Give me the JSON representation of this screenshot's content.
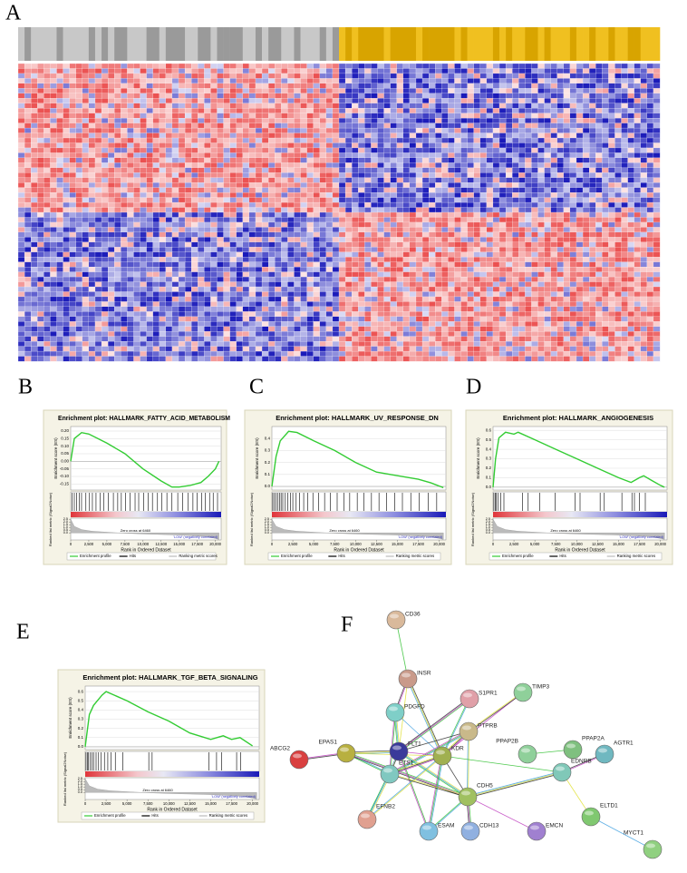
{
  "panel_labels": [
    "A",
    "B",
    "C",
    "D",
    "E",
    "F"
  ],
  "chart_data": [
    {
      "type": "line",
      "title": "Enrichment plot: HALLMARK_FATTY_ACID_METABOLISM",
      "ylabel": "Enrichment score (ES)",
      "metric_label": "Ranked list metric (Signal2Noise)",
      "xlabel": "Rank in Ordered Dataset",
      "high_label": "'HIGH' (positively correlated)",
      "low_label": "'LOW' (negatively correlated)",
      "zero_cross": "Zero cross at 6460",
      "legend": [
        "Enrichment profile",
        "Hits",
        "Ranking metric scores"
      ],
      "color": "#33cc33",
      "x": [
        0,
        500,
        1500,
        2500,
        5000,
        7500,
        10000,
        12500,
        14000,
        15000,
        16500,
        18000,
        19000,
        20000,
        20500
      ],
      "values": [
        0,
        0.15,
        0.19,
        0.18,
        0.12,
        0.05,
        -0.05,
        -0.13,
        -0.17,
        -0.17,
        -0.16,
        -0.14,
        -0.1,
        -0.05,
        0
      ],
      "xlim": [
        0,
        20800
      ],
      "xticks": [
        0,
        {
          "value": 2500,
          "label": "2,500"
        },
        {
          "value": 5000,
          "label": "5,000"
        },
        {
          "value": 7500,
          "label": "7,500"
        },
        {
          "value": 10000,
          "label": "10,000"
        },
        {
          "value": 12500,
          "label": "12,500"
        },
        {
          "value": 15000,
          "label": "15,000"
        },
        {
          "value": 17500,
          "label": "17,500"
        },
        {
          "value": 20000,
          "label": "20,000"
        }
      ],
      "ylim": [
        -0.19,
        0.23
      ],
      "yticks": [
        {
          "value": 0.2,
          "label": "0.20"
        },
        0.15,
        {
          "value": 0.1,
          "label": "0.10"
        },
        0.05,
        {
          "value": 0,
          "label": "0.00"
        },
        -0.05,
        {
          "value": -0.1,
          "label": "-0.10"
        },
        -0.15
      ],
      "hits": [
        200,
        500,
        800,
        1200,
        1500,
        2100,
        2600,
        3000,
        3500,
        4100,
        4600,
        5200,
        5900,
        6500,
        7000,
        7600,
        8200,
        8900,
        9400,
        10100,
        10700,
        11300,
        12000,
        12600,
        13300,
        14000,
        14800,
        15500,
        16200,
        16900,
        17500,
        18100,
        18600,
        19200,
        19700,
        20300
      ],
      "metric": {
        "x": [
          0,
          500,
          1500,
          3000,
          6460,
          10000,
          15000,
          19000,
          20500
        ],
        "values": [
          2.5,
          1.2,
          0.6,
          0.3,
          0,
          -0.2,
          -0.4,
          -0.7,
          -1.2
        ],
        "ylim": [
          -1.3,
          2.7
        ],
        "yticks": [
          2.5,
          {
            "value": 2,
            "label": "2.0"
          },
          1.5,
          {
            "value": 1,
            "label": "1.0"
          },
          0.5,
          {
            "value": 0,
            "label": "0.0"
          }
        ]
      }
    },
    {
      "type": "line",
      "title": "Enrichment plot: HALLMARK_UV_RESPONSE_DN",
      "ylabel": "Enrichment score (ES)",
      "metric_label": "Ranked list metric (Signal2Noise)",
      "xlabel": "Rank in Ordered Dataset",
      "high_label": "'HIGH' (positively correlated)",
      "low_label": "'LOW' (negatively correlated)",
      "zero_cross": "Zero cross at 6460",
      "legend": [
        "Enrichment profile",
        "Hits",
        "Ranking metric scores"
      ],
      "color": "#33cc33",
      "x": [
        0,
        500,
        1000,
        2000,
        3000,
        5000,
        7500,
        10000,
        12500,
        15000,
        17500,
        19000,
        20500
      ],
      "values": [
        0,
        0.25,
        0.38,
        0.46,
        0.45,
        0.38,
        0.3,
        0.2,
        0.12,
        0.09,
        0.06,
        0.03,
        -0.01
      ],
      "xlim": [
        0,
        20800
      ],
      "xticks": [
        0,
        {
          "value": 2500,
          "label": "2,500"
        },
        {
          "value": 5000,
          "label": "5,000"
        },
        {
          "value": 7500,
          "label": "7,500"
        },
        {
          "value": 10000,
          "label": "10,000"
        },
        {
          "value": 12500,
          "label": "12,500"
        },
        {
          "value": 15000,
          "label": "15,000"
        },
        {
          "value": 17500,
          "label": "17,500"
        },
        {
          "value": 20000,
          "label": "20,000"
        }
      ],
      "ylim": [
        -0.03,
        0.5
      ],
      "yticks": [
        {
          "value": 0,
          "label": "0.0"
        },
        0.1,
        0.2,
        0.3,
        0.4
      ],
      "hits": [
        100,
        300,
        500,
        700,
        900,
        1100,
        1300,
        1600,
        1900,
        2200,
        2500,
        2900,
        3300,
        3800,
        4300,
        4900,
        5600,
        6300,
        7000,
        7800,
        8600,
        9300,
        10200,
        11000,
        11900,
        12800,
        13700,
        14700,
        15600,
        16600,
        17600,
        18700,
        19700
      ],
      "metric": {
        "x": [
          0,
          500,
          1500,
          3000,
          6460,
          10000,
          15000,
          19000,
          20500
        ],
        "values": [
          2.5,
          1.2,
          0.6,
          0.3,
          0,
          -0.2,
          -0.4,
          -0.7,
          -1.2
        ],
        "ylim": [
          -1.3,
          2.7
        ],
        "yticks": [
          2.5,
          {
            "value": 2,
            "label": "2.0"
          },
          1.5,
          {
            "value": 1,
            "label": "1.0"
          },
          0.5,
          {
            "value": 0,
            "label": "0.0"
          }
        ]
      }
    },
    {
      "type": "line",
      "title": "Enrichment plot: HALLMARK_ANGIOGENESIS",
      "ylabel": "Enrichment score (ES)",
      "metric_label": "Ranked list metric (Signal2Noise)",
      "xlabel": "Rank in Ordered Dataset",
      "high_label": "'HIGH' (positively correlated)",
      "low_label": "'LOW' (negatively correlated)",
      "zero_cross": "Zero cross at 6460",
      "legend": [
        "Enrichment profile",
        "Hits",
        "Ranking metric scores"
      ],
      "color": "#33cc33",
      "x": [
        0,
        300,
        700,
        1500,
        2500,
        3000,
        5000,
        7500,
        10000,
        12500,
        15000,
        16500,
        17500,
        18000,
        19000,
        20000,
        20500
      ],
      "values": [
        0,
        0.3,
        0.52,
        0.58,
        0.56,
        0.58,
        0.5,
        0.4,
        0.3,
        0.2,
        0.1,
        0.05,
        0.1,
        0.12,
        0.07,
        0.02,
        0
      ],
      "xlim": [
        0,
        20800
      ],
      "xticks": [
        0,
        {
          "value": 2500,
          "label": "2,500"
        },
        {
          "value": 5000,
          "label": "5,000"
        },
        {
          "value": 7500,
          "label": "7,500"
        },
        {
          "value": 10000,
          "label": "10,000"
        },
        {
          "value": 12500,
          "label": "12,500"
        },
        {
          "value": 15000,
          "label": "15,000"
        },
        {
          "value": 17500,
          "label": "17,500"
        },
        {
          "value": 20000,
          "label": "20,000"
        }
      ],
      "ylim": [
        -0.03,
        0.64
      ],
      "yticks": [
        {
          "value": 0,
          "label": "0.0"
        },
        0.1,
        0.2,
        0.3,
        0.4,
        0.5,
        0.6
      ],
      "hits": [
        100,
        250,
        400,
        600,
        900,
        1300,
        3500,
        4200,
        5600,
        7400,
        9800,
        10400,
        12800,
        13300,
        15400,
        16600,
        16900,
        17500,
        18200
      ],
      "metric": {
        "x": [
          0,
          500,
          1500,
          3000,
          6460,
          10000,
          15000,
          19000,
          20500
        ],
        "values": [
          2.5,
          1.2,
          0.6,
          0.3,
          0,
          -0.2,
          -0.4,
          -0.7,
          -1.2
        ],
        "ylim": [
          -1.3,
          2.7
        ],
        "yticks": [
          2.5,
          {
            "value": 2,
            "label": "2.0"
          },
          1.5,
          {
            "value": 1,
            "label": "1.0"
          },
          0.5,
          {
            "value": 0,
            "label": "0.0"
          }
        ]
      }
    },
    {
      "type": "line",
      "title": "Enrichment plot: HALLMARK_TGF_BETA_SIGNALING",
      "ylabel": "Enrichment score (ES)",
      "metric_label": "Ranked list metric (Signal2Noise)",
      "xlabel": "Rank in Ordered Dataset",
      "high_label": "'HIGH' (positively correlated)",
      "low_label": "'LOW' (negatively correlated)",
      "zero_cross": "Zero cross at 6460",
      "legend": [
        "Enrichment profile",
        "Hits",
        "Ranking metric scores"
      ],
      "color": "#33cc33",
      "x": [
        0,
        500,
        1000,
        2000,
        2500,
        5000,
        7500,
        10000,
        12500,
        15000,
        16500,
        17500,
        18500,
        20000
      ],
      "values": [
        0,
        0.35,
        0.45,
        0.56,
        0.6,
        0.5,
        0.38,
        0.28,
        0.15,
        0.08,
        0.12,
        0.08,
        0.1,
        0.01
      ],
      "xlim": [
        0,
        20800
      ],
      "xticks": [
        0,
        {
          "value": 2500,
          "label": "2,500"
        },
        {
          "value": 5000,
          "label": "5,000"
        },
        {
          "value": 7500,
          "label": "7,500"
        },
        {
          "value": 10000,
          "label": "10,000"
        },
        {
          "value": 12500,
          "label": "12,500"
        },
        {
          "value": 15000,
          "label": "15,000"
        },
        {
          "value": 17500,
          "label": "17,500"
        },
        {
          "value": 20000,
          "label": "20,000"
        }
      ],
      "ylim": [
        -0.03,
        0.66
      ],
      "yticks": [
        {
          "value": 0,
          "label": "0.0"
        },
        0.1,
        0.2,
        0.3,
        0.4,
        0.5,
        0.6
      ],
      "hits": [
        100,
        250,
        400,
        600,
        800,
        1000,
        1300,
        1600,
        1900,
        2300,
        2700,
        3100,
        3600,
        4500,
        7600,
        8000,
        14800,
        15700,
        16300,
        18100,
        18600
      ],
      "metric": {
        "x": [
          0,
          500,
          1500,
          3000,
          6460,
          10000,
          15000,
          19000,
          20500
        ],
        "values": [
          2.5,
          1.2,
          0.6,
          0.3,
          0,
          -0.2,
          -0.4,
          -0.7,
          -1.2
        ],
        "ylim": [
          -1.3,
          2.7
        ],
        "yticks": [
          2.5,
          {
            "value": 2,
            "label": "2.0"
          },
          1.5,
          {
            "value": 1,
            "label": "1.0"
          },
          0.5,
          {
            "value": 0,
            "label": "0.0"
          }
        ]
      }
    }
  ],
  "network": {
    "nodes": [
      {
        "label": "CD36"
      },
      {
        "label": "INSR"
      },
      {
        "label": "S1PR1"
      },
      {
        "label": "TIMP3"
      },
      {
        "label": "PDGFD"
      },
      {
        "label": "PTPRB"
      },
      {
        "label": "PPAP2B"
      },
      {
        "label": "PPAP2A"
      },
      {
        "label": "ABCG2"
      },
      {
        "label": "EPAS1"
      },
      {
        "label": "FLT1"
      },
      {
        "label": "KDR"
      },
      {
        "label": "AGTR1"
      },
      {
        "label": "ETS1"
      },
      {
        "label": "EDNRB"
      },
      {
        "label": "CDH5"
      },
      {
        "label": "EFNB2"
      },
      {
        "label": "ESAM"
      },
      {
        "label": "CDH13"
      },
      {
        "label": "EMCN"
      },
      {
        "label": "ELTD1"
      },
      {
        "label": "MYCT1"
      }
    ]
  }
}
